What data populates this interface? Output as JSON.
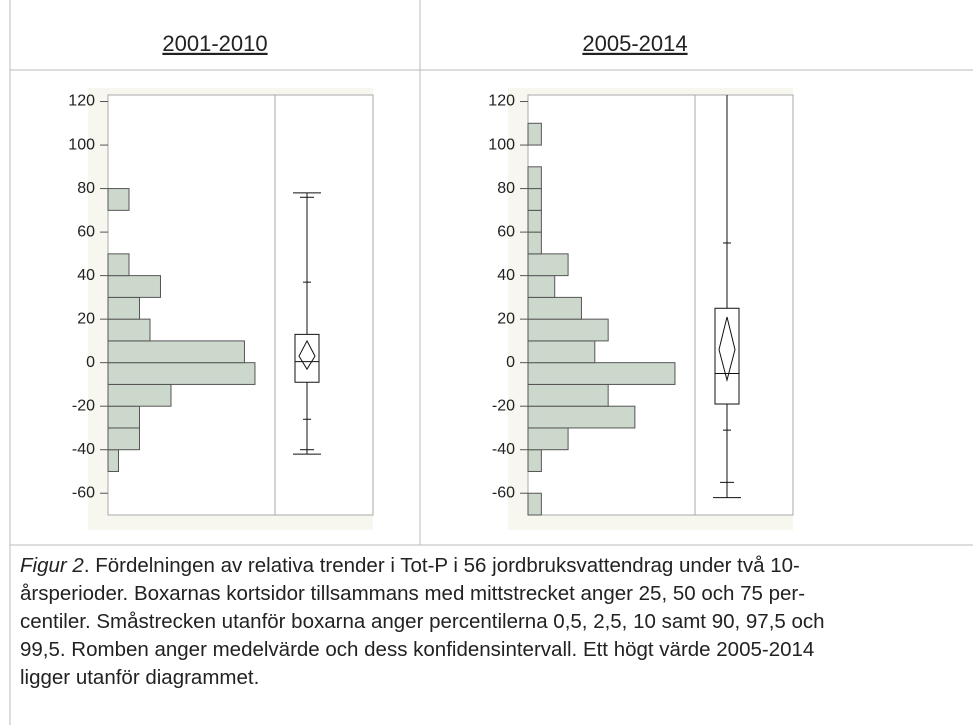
{
  "chart_data": [
    {
      "type": "histogram_box",
      "title": "2001-2010",
      "color": "#cdd8cc",
      "bins": [
        -50,
        -40,
        -30,
        -20,
        -10,
        0,
        10,
        20,
        30,
        40,
        50,
        60,
        70,
        80
      ],
      "values": [
        1,
        3,
        3,
        6,
        14,
        13,
        4,
        3,
        5,
        2,
        0,
        0,
        2
      ],
      "ylim": [
        -70,
        123
      ],
      "yticks": [
        -60,
        -40,
        -20,
        0,
        20,
        40,
        60,
        80,
        100,
        120
      ],
      "box": {
        "p0_5": -42,
        "p2_5": -40,
        "p10": -26,
        "p25": -9,
        "p50": 0.5,
        "p75": 13,
        "p90": 37,
        "p97_5": 76,
        "p99_5": 78,
        "mean": 3,
        "ci_low": -3,
        "ci_high": 10
      }
    },
    {
      "type": "histogram_box",
      "title": "2005-2014",
      "color": "#cdd8cc",
      "bins": [
        -70,
        -60,
        -50,
        -40,
        -30,
        -20,
        -10,
        0,
        10,
        20,
        30,
        40,
        50,
        60,
        70,
        80,
        90,
        100,
        110
      ],
      "values": [
        1,
        0,
        1,
        3,
        8,
        6,
        11,
        5,
        6,
        4,
        2,
        3,
        1,
        1,
        1,
        1,
        0,
        1
      ],
      "ylim": [
        -70,
        123
      ],
      "yticks": [
        -60,
        -40,
        -20,
        0,
        20,
        40,
        60,
        80,
        100,
        120
      ],
      "box": {
        "p0_5": -62,
        "p2_5": -55,
        "p10": -31,
        "p25": -19,
        "p50": -5,
        "p75": 25,
        "p90": 55,
        "p97_5": 125,
        "p99_5": 140,
        "mean": 6,
        "ci_low": -8,
        "ci_high": 21
      }
    }
  ],
  "caption": {
    "label": "Figur 2",
    "lines": [
      ". Fördelningen av relativa trender i Tot-P i 56 jordbruksvattendrag under två 10-",
      "årsperioder. Boxarnas kortsidor tillsammans med mittstrecket anger 25, 50 och 75 per-",
      "centiler. Småstrecken utanför boxarna anger percentilerna 0,5, 2,5, 10 samt 90, 97,5 och",
      "99,5. Romben anger medelvärde och dess konfidensintervall. Ett högt värde 2005-2014",
      "ligger utanför diagrammet."
    ]
  }
}
